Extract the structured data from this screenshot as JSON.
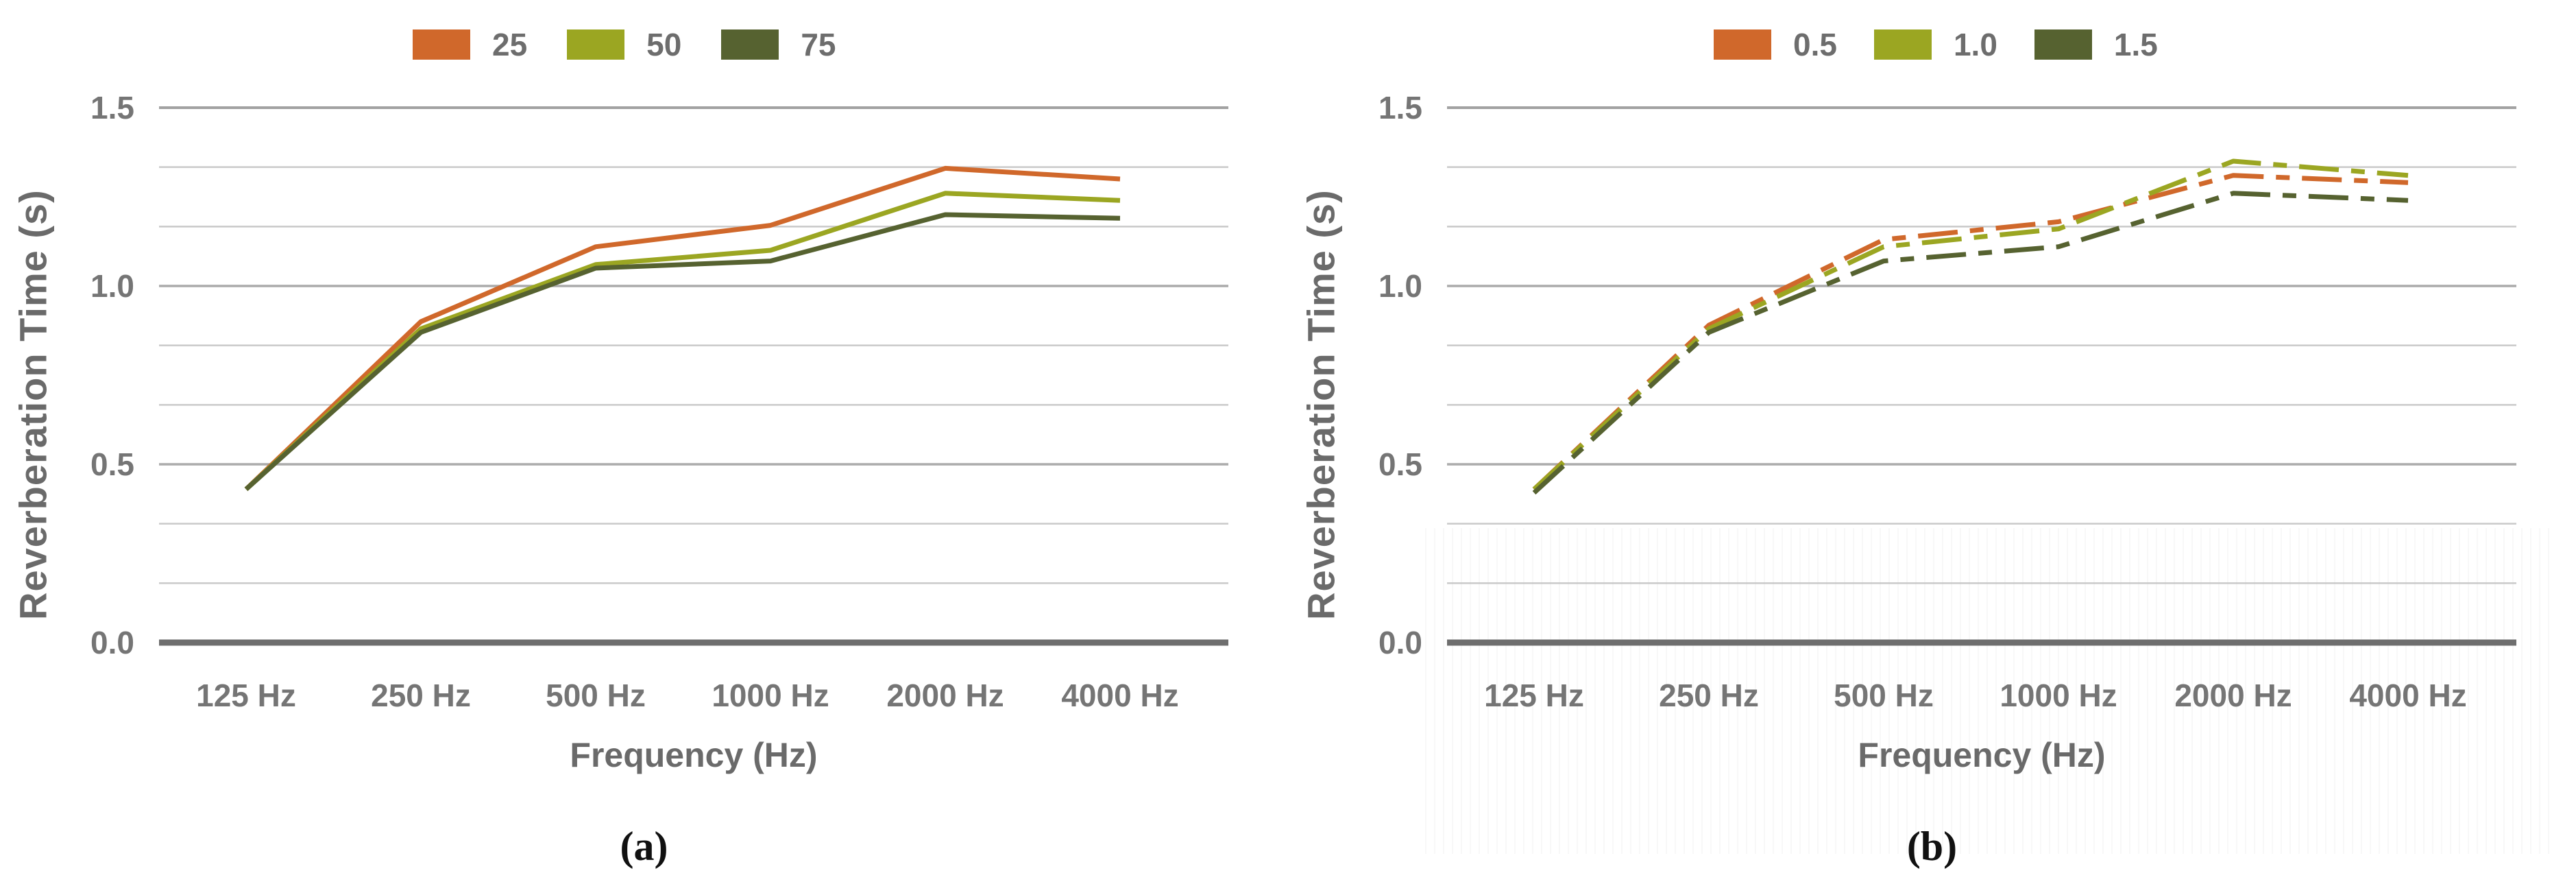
{
  "page": {
    "background": "#ffffff"
  },
  "axis": {
    "y_title": "Reverberation Time (s)",
    "x_title": "Frequency (Hz)"
  },
  "captions": {
    "a": "(a)",
    "b": "(b)"
  },
  "palette": {
    "orange": "#D0682B",
    "yellow_green": "#9BA622",
    "olive": "#566230",
    "grid_minor": "#C9C9C9",
    "grid_major": "#ABABAB",
    "grid_top": "#A2A2A2",
    "axis_line": "#6E6E6E",
    "tick_text": "#757575",
    "title_text": "#6A6A6A"
  },
  "chart_data": [
    {
      "type": "line",
      "panel": "a",
      "title": "",
      "categories": [
        "125 Hz",
        "250 Hz",
        "500 Hz",
        "1000 Hz",
        "2000 Hz",
        "4000 Hz"
      ],
      "series": [
        {
          "name": "25",
          "color": "#D0682B",
          "line_style": "solid",
          "values": [
            0.43,
            0.9,
            1.11,
            1.17,
            1.33,
            1.3
          ]
        },
        {
          "name": "50",
          "color": "#9BA622",
          "line_style": "solid",
          "values": [
            0.43,
            0.88,
            1.06,
            1.1,
            1.26,
            1.24
          ]
        },
        {
          "name": "75",
          "color": "#566230",
          "line_style": "solid",
          "values": [
            0.43,
            0.87,
            1.05,
            1.07,
            1.2,
            1.19
          ]
        }
      ],
      "xlabel": "Frequency (Hz)",
      "ylabel": "Reverberation Time (s)",
      "ylim": [
        0,
        1.5
      ],
      "ytick_labels": [
        "1.5",
        "1.0",
        "0.5",
        "0.0"
      ],
      "ytick_values": [
        1.5,
        1.0,
        0.5,
        0.0
      ],
      "minor_grid_step": 0.1667,
      "grid": "horizontal",
      "legend_position": "top"
    },
    {
      "type": "line",
      "panel": "b",
      "title": "",
      "categories": [
        "125 Hz",
        "250 Hz",
        "500 Hz",
        "1000 Hz",
        "2000 Hz",
        "4000 Hz"
      ],
      "series": [
        {
          "name": "0.5",
          "color": "#D0682B",
          "line_style": "dashdot",
          "values": [
            0.43,
            0.89,
            1.13,
            1.18,
            1.31,
            1.29
          ]
        },
        {
          "name": "1.0",
          "color": "#9BA622",
          "line_style": "dashdot",
          "values": [
            0.43,
            0.88,
            1.11,
            1.16,
            1.35,
            1.31
          ]
        },
        {
          "name": "1.5",
          "color": "#566230",
          "line_style": "dashdot",
          "values": [
            0.42,
            0.87,
            1.07,
            1.11,
            1.26,
            1.24
          ]
        }
      ],
      "xlabel": "Frequency (Hz)",
      "ylabel": "Reverberation Time (s)",
      "ylim": [
        0,
        1.5
      ],
      "ytick_labels": [
        "1.5",
        "1.0",
        "0.5",
        "0.0"
      ],
      "ytick_values": [
        1.5,
        1.0,
        0.5,
        0.0
      ],
      "minor_grid_step": 0.1667,
      "grid": "horizontal",
      "legend_position": "top"
    }
  ]
}
